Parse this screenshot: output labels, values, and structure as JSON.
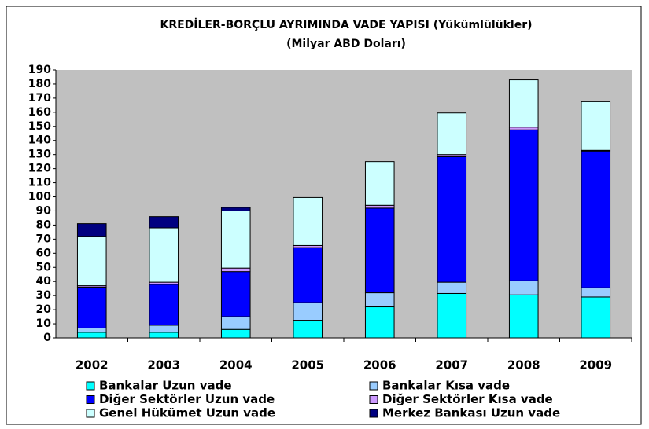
{
  "chart_data": {
    "type": "stacked_bar",
    "title": "KREDİLER-BORÇLU AYRIMINDA VADE YAPISI (Yükümlülükler)",
    "subtitle": "(Milyar ABD Doları)",
    "categories": [
      "2002",
      "2003",
      "2004",
      "2005",
      "2006",
      "2007",
      "2008",
      "2009"
    ],
    "series": [
      {
        "name": "Bankalar Uzun vade",
        "color": "#00ffff",
        "values": [
          4,
          4,
          6,
          12.5,
          22,
          31.5,
          30.5,
          29
        ]
      },
      {
        "name": "Bankalar Kısa vade",
        "color": "#99ccff",
        "values": [
          3,
          5,
          9,
          12.5,
          10,
          8,
          10,
          6.5
        ]
      },
      {
        "name": "Diğer Sektörler Uzun vade",
        "color": "#0000ff",
        "values": [
          29,
          29,
          32,
          39,
          60,
          89,
          107,
          97
        ]
      },
      {
        "name": "Diğer Sektörler Kısa vade",
        "color": "#cc99ff",
        "values": [
          1,
          1.5,
          2.5,
          1.5,
          2,
          1.5,
          2,
          0.5
        ]
      },
      {
        "name": "Genel Hükümet Uzun vade",
        "color": "#ccffff",
        "values": [
          35,
          38.5,
          40.5,
          34,
          31,
          29.5,
          33.5,
          34.5
        ]
      },
      {
        "name": "Merkez Bankası Uzun vade",
        "color": "#000080",
        "values": [
          9,
          8,
          2.5,
          0,
          0,
          0,
          0,
          0
        ]
      }
    ],
    "ylim": [
      0,
      190
    ],
    "yticks": [
      0,
      10,
      20,
      30,
      40,
      50,
      60,
      70,
      80,
      90,
      100,
      110,
      120,
      130,
      140,
      150,
      160,
      170,
      180,
      190
    ],
    "grid": false
  }
}
